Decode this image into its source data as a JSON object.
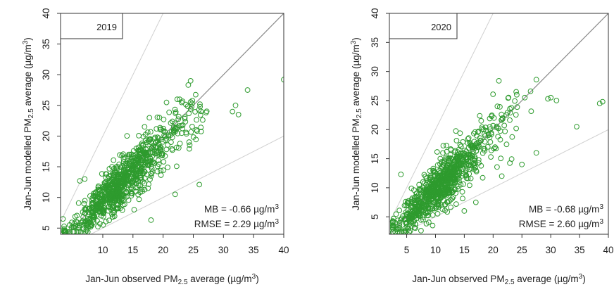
{
  "chart_data": [
    {
      "type": "scatter",
      "title": "2019",
      "xlabel": {
        "pre": "Jan-Jun observed PM",
        "sub": "2.5",
        "post": " average (µg/m",
        "sup": "3",
        "end": ")"
      },
      "ylabel": {
        "pre": "Jan-Jun modelled PM",
        "sub": "2.5",
        "post": " average (µg/m",
        "sup": "3",
        "end": ")"
      },
      "xlim": [
        3,
        40
      ],
      "ylim": [
        4,
        40
      ],
      "xticks": [
        "10",
        "15",
        "20",
        "25",
        "30",
        "35",
        "40"
      ],
      "xtick_values": [
        10,
        15,
        20,
        25,
        30,
        35,
        40
      ],
      "yticks": [
        "5",
        "10",
        "15",
        "20",
        "25",
        "30",
        "35",
        "40"
      ],
      "ytick_values": [
        5,
        10,
        15,
        20,
        25,
        30,
        35,
        40
      ],
      "reference_lines": {
        "one_to_one": 1,
        "factor_of_two": [
          2,
          0.5
        ]
      },
      "point_color": "#2e9b2e",
      "line_color_main": "#8a8a8a",
      "line_color_ref": "#cfcfcf",
      "stats": {
        "mb": {
          "pre": "MB = -0.66 µg/m",
          "sup": "3"
        },
        "rmse": {
          "pre": "RMSE = 2.29 µg/m",
          "sup": "3"
        }
      },
      "model": {
        "n": 900,
        "seed": 11,
        "center": 12.5,
        "spread": 3.3,
        "slope": 0.95,
        "noise": 1.6
      },
      "x": [
        34.0,
        40.0,
        31.5,
        32.5,
        32.0,
        24.8,
        26.0,
        22.0,
        17.5,
        18.0,
        7.0,
        6.2,
        16.0,
        25.5,
        15.2,
        8.0,
        4.5,
        3.4
      ],
      "y": [
        27.5,
        29.2,
        24.0,
        23.5,
        25.0,
        25.3,
        12.1,
        10.5,
        11.5,
        6.3,
        13.0,
        12.7,
        17.6,
        21.0,
        8.0,
        5.2,
        5.5,
        6.5
      ]
    },
    {
      "type": "scatter",
      "title": "2020",
      "xlabel": {
        "pre": "Jan-Jun observed PM",
        "sub": "2.5",
        "post": " average (µg/m",
        "sup": "3",
        "end": ")"
      },
      "ylabel": {
        "pre": "Jan-Jun modelled PM",
        "sub": "2.5",
        "post": " average (µg/m",
        "sup": "3",
        "end": ")"
      },
      "xlim": [
        2,
        40
      ],
      "ylim": [
        2,
        40
      ],
      "xticks": [
        "5",
        "10",
        "15",
        "20",
        "25",
        "30",
        "35",
        "40"
      ],
      "xtick_values": [
        5,
        10,
        15,
        20,
        25,
        30,
        35,
        40
      ],
      "yticks": [
        "5",
        "10",
        "15",
        "20",
        "25",
        "30",
        "35",
        "40"
      ],
      "ytick_values": [
        5,
        10,
        15,
        20,
        25,
        30,
        35,
        40
      ],
      "reference_lines": {
        "one_to_one": 1,
        "factor_of_two": [
          2,
          0.5
        ]
      },
      "point_color": "#2e9b2e",
      "line_color_main": "#8a8a8a",
      "line_color_ref": "#cfcfcf",
      "stats": {
        "mb": {
          "pre": "MB = -0.68 µg/m",
          "sup": "3"
        },
        "rmse": {
          "pre": "RMSE = 2.60 µg/m",
          "sup": "3"
        }
      },
      "model": {
        "n": 900,
        "seed": 29,
        "center": 10.5,
        "spread": 3.4,
        "slope": 0.96,
        "noise": 1.7
      },
      "x": [
        21.0,
        27.5,
        26.5,
        25.5,
        38.5,
        39.0,
        34.5,
        31.0,
        30.0,
        29.5,
        27.5,
        25.0,
        21.5,
        15.0,
        17.0,
        4.0,
        3.0,
        2.6,
        9.5
      ],
      "y": [
        28.4,
        28.6,
        26.6,
        25.5,
        24.5,
        24.8,
        20.5,
        25.0,
        25.5,
        25.3,
        16.0,
        14.0,
        12.0,
        6.0,
        7.5,
        12.3,
        4.0,
        3.2,
        3.5
      ]
    }
  ]
}
